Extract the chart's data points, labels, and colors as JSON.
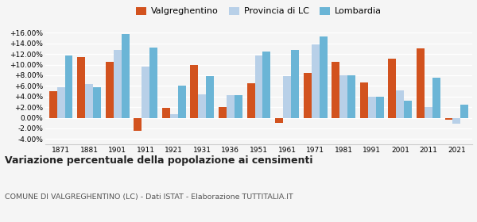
{
  "years": [
    1871,
    1881,
    1901,
    1911,
    1921,
    1931,
    1936,
    1951,
    1961,
    1971,
    1981,
    1991,
    2001,
    2011,
    2021
  ],
  "valgreghentino": [
    5.0,
    11.5,
    10.5,
    -2.5,
    1.8,
    9.9,
    2.0,
    6.5,
    -1.0,
    8.5,
    10.5,
    6.6,
    11.2,
    13.0,
    -0.3
  ],
  "provincia_lc": [
    5.8,
    6.3,
    12.7,
    9.7,
    0.7,
    4.4,
    4.2,
    11.8,
    7.8,
    13.8,
    8.0,
    4.0,
    5.2,
    2.0,
    -1.1
  ],
  "lombardia": [
    11.7,
    5.7,
    15.7,
    13.2,
    6.1,
    7.9,
    4.2,
    12.5,
    12.8,
    15.3,
    8.0,
    4.0,
    3.2,
    7.5,
    2.4
  ],
  "color_valgreghentino": "#d2521e",
  "color_provincia": "#b8d0e8",
  "color_lombardia": "#6bb5d6",
  "title": "Variazione percentuale della popolazione ai censimenti",
  "subtitle": "COMUNE DI VALGREGHENTINO (LC) - Dati ISTAT - Elaborazione TUTTITALIA.IT",
  "ylim": [
    -5.0,
    18.0
  ],
  "yticks": [
    -4.0,
    -2.0,
    0.0,
    2.0,
    4.0,
    6.0,
    8.0,
    10.0,
    12.0,
    14.0,
    16.0
  ],
  "background_color": "#f5f5f5",
  "bar_width": 0.28
}
